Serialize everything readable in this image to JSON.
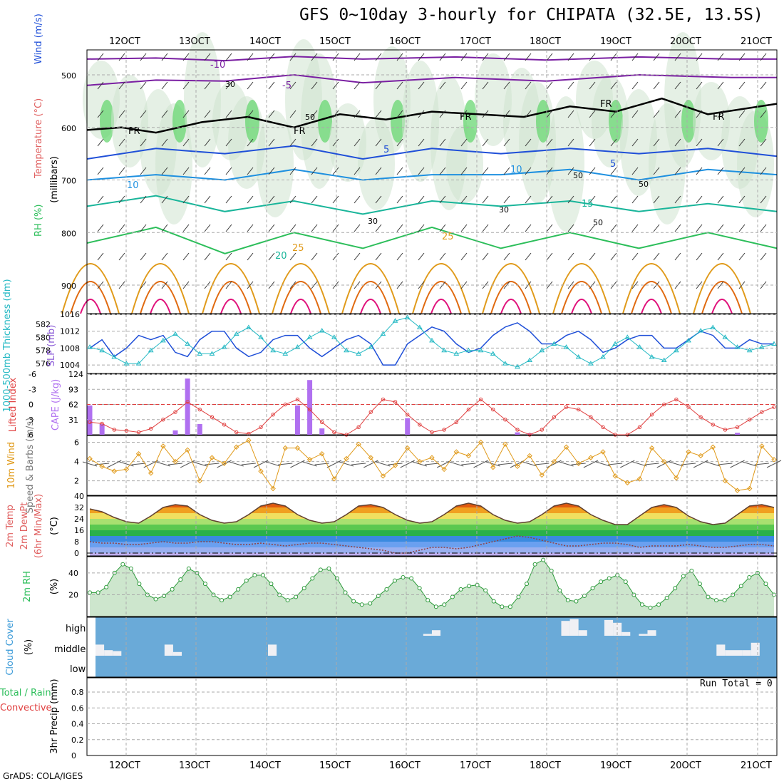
{
  "title": "GFS 0~10day 3-hourly for CHIPATA (32.5E, 13.5S)",
  "footer": "GrADS: COLA/IGES",
  "colors": {
    "purple": "#7a1fa2",
    "black": "#000000",
    "blue": "#1f4fd8",
    "lblue": "#1e90e0",
    "teal": "#19b59a",
    "green20": "#2cbe5a",
    "orange": "#e09a1a",
    "dorange": "#e06a10",
    "magenta": "#e0107a"
  },
  "chart_data": [
    {
      "panel": "upper-air",
      "type": "contour",
      "labels": {
        "wind": "Wind (m/s)",
        "temperature": "Temperature (°C)",
        "rh": "RH (%)",
        "axis": "(millibars)"
      },
      "y_ticks": [
        "500",
        "600",
        "700",
        "800",
        "900"
      ],
      "temperature_labels": [
        "-10",
        "-5",
        "FR",
        "FR",
        "FR",
        "FR",
        "FR",
        "5",
        "5",
        "10",
        "10",
        "15",
        "20",
        "25",
        "25"
      ],
      "rh_labels": [
        "30",
        "50",
        "50",
        "30",
        "30",
        "50",
        "50"
      ],
      "temp_isotherms": [
        {
          "label": "-10",
          "color": "purple",
          "x": [
            0,
            30,
            60,
            90,
            120,
            160,
            200,
            240,
            280,
            300
          ],
          "y": [
            470,
            468,
            473,
            465,
            470,
            466,
            472,
            466,
            470,
            470
          ]
        },
        {
          "label": "-5",
          "color": "purple",
          "x": [
            0,
            30,
            60,
            90,
            120,
            160,
            200,
            240,
            280,
            300
          ],
          "y": [
            520,
            510,
            512,
            500,
            515,
            505,
            512,
            500,
            505,
            505
          ]
        },
        {
          "label": "FR",
          "color": "black",
          "x": [
            0,
            15,
            30,
            50,
            70,
            90,
            110,
            130,
            150,
            170,
            190,
            210,
            230,
            250,
            270,
            300
          ],
          "y": [
            605,
            600,
            610,
            590,
            580,
            600,
            575,
            585,
            570,
            575,
            580,
            560,
            570,
            545,
            575,
            555
          ]
        },
        {
          "label": "5",
          "color": "blue",
          "x": [
            0,
            30,
            60,
            90,
            120,
            150,
            180,
            210,
            240,
            270,
            300
          ],
          "y": [
            660,
            640,
            650,
            635,
            660,
            640,
            650,
            640,
            650,
            640,
            655
          ]
        },
        {
          "label": "10",
          "color": "lblue",
          "x": [
            0,
            30,
            60,
            90,
            120,
            150,
            180,
            210,
            240,
            270,
            300
          ],
          "y": [
            700,
            690,
            700,
            680,
            700,
            690,
            690,
            680,
            700,
            680,
            690
          ]
        },
        {
          "label": "15",
          "color": "teal",
          "x": [
            0,
            30,
            60,
            90,
            120,
            150,
            180,
            210,
            240,
            270,
            300
          ],
          "y": [
            750,
            730,
            760,
            740,
            765,
            740,
            750,
            740,
            760,
            745,
            760
          ]
        },
        {
          "label": "20",
          "color": "green20",
          "x": [
            0,
            30,
            60,
            90,
            120,
            150,
            180,
            210,
            240,
            270,
            300
          ],
          "y": [
            820,
            790,
            840,
            800,
            830,
            790,
            830,
            800,
            830,
            800,
            830
          ]
        }
      ],
      "x_ticks": [
        "12OCT",
        "13OCT",
        "14OCT",
        "15OCT",
        "16OCT",
        "17OCT",
        "18OCT",
        "19OCT",
        "20OCT",
        "21OCT"
      ]
    },
    {
      "panel": "slp-thickness",
      "type": "line",
      "labels": {
        "thickness": "1000-500mb Thickness (dm)",
        "slp": "SLP (mb)"
      },
      "y_left_ticks": [
        "582",
        "580",
        "578",
        "576"
      ],
      "y_right_ticks": [
        "1016",
        "1012",
        "1008",
        "1004"
      ],
      "series": [
        {
          "name": "SLP",
          "color": "blue",
          "values": [
            1008,
            1010,
            1006,
            1008,
            1011,
            1010,
            1011,
            1007,
            1006,
            1010,
            1012,
            1012,
            1008,
            1006,
            1007,
            1010,
            1011,
            1011,
            1008,
            1006,
            1008,
            1010,
            1011,
            1009,
            1004,
            1004,
            1009,
            1011,
            1013,
            1012,
            1009,
            1007,
            1008,
            1011,
            1013,
            1014,
            1012,
            1009,
            1009,
            1011,
            1012,
            1010,
            1007,
            1008,
            1010,
            1011,
            1011,
            1008,
            1008,
            1010,
            1012,
            1011,
            1008,
            1008,
            1010,
            1009,
            1009
          ]
        },
        {
          "name": "Thickness",
          "color": "teal",
          "values": [
            578.5,
            578.0,
            577.0,
            576.0,
            576.0,
            578.0,
            579.5,
            580.5,
            579.0,
            577.5,
            577.5,
            578.5,
            580.5,
            581.5,
            580.0,
            578.0,
            577.5,
            578.5,
            580.0,
            581.0,
            580.0,
            578.0,
            577.5,
            578.5,
            580.5,
            582.5,
            583.0,
            581.5,
            579.5,
            578.0,
            577.5,
            578.0,
            578.0,
            577.5,
            576.0,
            575.5,
            576.5,
            578.0,
            579.0,
            578.5,
            577.0,
            576.0,
            577.0,
            579.0,
            580.0,
            578.5,
            577.0,
            576.5,
            578.0,
            579.5,
            581.0,
            581.5,
            580.0,
            578.5,
            578.0,
            578.5,
            579.0
          ]
        }
      ]
    },
    {
      "panel": "cape-li",
      "type": "bar+line",
      "labels": {
        "li": "Lifted Index",
        "cape": "CAPE (J/kg)"
      },
      "y_left_ticks": [
        "-6",
        "-3",
        "0",
        "3",
        "6"
      ],
      "y_right_ticks": [
        "124",
        "93",
        "62",
        "31"
      ],
      "cape_values": [
        60,
        22,
        0,
        0,
        0,
        0,
        0,
        9,
        115,
        22,
        0,
        0,
        0,
        0,
        0,
        0,
        0,
        60,
        112,
        13,
        0,
        0,
        0,
        0,
        0,
        0,
        34,
        0,
        0,
        0,
        0,
        0,
        0,
        0,
        0,
        5,
        3,
        0,
        0,
        0,
        0,
        0,
        0,
        0,
        0,
        0,
        0,
        0,
        0,
        0,
        0,
        0,
        0,
        4,
        0,
        0,
        0
      ],
      "li_values": [
        3.5,
        3.8,
        5.0,
        5.2,
        5.5,
        4.8,
        3.0,
        1.5,
        -0.5,
        1.0,
        2.5,
        4.0,
        5.5,
        5.8,
        4.5,
        2.0,
        0.0,
        -1.0,
        1.0,
        3.5,
        5.5,
        6.0,
        4.5,
        1.5,
        -1.0,
        -0.5,
        2.0,
        4.0,
        5.5,
        5.0,
        3.5,
        1.0,
        -1.0,
        1.0,
        3.0,
        5.0,
        6.0,
        5.0,
        2.5,
        0.5,
        1.0,
        2.5,
        4.5,
        6.0,
        6.0,
        4.5,
        2.0,
        0.0,
        -1.0,
        0.5,
        2.5,
        4.0,
        5.0,
        4.5,
        3.0,
        1.5,
        0.5
      ]
    },
    {
      "panel": "wind10m",
      "type": "line",
      "labels": {
        "main": "10m Wind",
        "sub": "Speed & Barbs (m/s)"
      },
      "y_ticks": [
        "6",
        "4",
        "2"
      ],
      "values": [
        4.3,
        3.5,
        3.0,
        3.2,
        4.8,
        2.8,
        5.6,
        4.0,
        5.2,
        2.0,
        4.4,
        3.8,
        5.5,
        6.2,
        3.0,
        1.2,
        5.4,
        5.4,
        4.2,
        4.8,
        2.2,
        4.3,
        5.8,
        4.4,
        2.5,
        3.6,
        5.4,
        4.0,
        4.4,
        3.2,
        5.0,
        4.6,
        6.0,
        3.4,
        5.8,
        3.5,
        4.6,
        2.6,
        4.0,
        5.5,
        3.8,
        4.4,
        5.0,
        2.5,
        1.8,
        2.2,
        5.4,
        4.0,
        2.3,
        5.0,
        4.6,
        5.5,
        2.0,
        1.0,
        1.2,
        5.6,
        4.2
      ]
    },
    {
      "panel": "temp2m",
      "type": "area+line",
      "labels": {
        "a": "2m Temp",
        "b": "2m DewPt",
        "c": "(6hr Min/Max)",
        "unit": "(°C)"
      },
      "y_ticks": [
        "40",
        "32",
        "24",
        "16",
        "8",
        "0"
      ],
      "temp_values": [
        31,
        29,
        25,
        22,
        21,
        26,
        32,
        34,
        33,
        27,
        23,
        21,
        22,
        27,
        33,
        35,
        33,
        27,
        23,
        21,
        22,
        27,
        33,
        34,
        32,
        27,
        23,
        21,
        22,
        27,
        33,
        35,
        33,
        27,
        23,
        21,
        22,
        27,
        33,
        35,
        33,
        27,
        23,
        20,
        20,
        26,
        32,
        34,
        32,
        26,
        22,
        20,
        21,
        27,
        33,
        34,
        32
      ],
      "dewpt_values": [
        8,
        7,
        7,
        6,
        6,
        7,
        8,
        7,
        7,
        8,
        8,
        7,
        6,
        6,
        7,
        6,
        5,
        6,
        7,
        7,
        6,
        5,
        4,
        3,
        2,
        0,
        0,
        2,
        4,
        4,
        3,
        4,
        6,
        8,
        10,
        12,
        11,
        9,
        7,
        5,
        5,
        6,
        7,
        7,
        6,
        4,
        5,
        5,
        5,
        6,
        5,
        4,
        4,
        5,
        6,
        6,
        5
      ]
    },
    {
      "panel": "rh2m",
      "type": "area",
      "labels": {
        "main": "2m RH",
        "unit": "(%)"
      },
      "y_ticks": [
        "40",
        "20"
      ],
      "values": [
        22,
        22,
        27,
        40,
        48,
        44,
        30,
        20,
        16,
        19,
        25,
        34,
        44,
        40,
        30,
        20,
        15,
        18,
        25,
        33,
        38,
        38,
        30,
        20,
        15,
        18,
        26,
        35,
        43,
        44,
        35,
        22,
        14,
        11,
        12,
        19,
        25,
        33,
        36,
        35,
        26,
        15,
        9,
        11,
        18,
        25,
        28,
        29,
        24,
        14,
        9,
        9,
        18,
        30,
        48,
        52,
        42,
        24,
        15,
        14,
        19,
        26,
        32,
        35,
        38,
        32,
        20,
        11,
        8,
        11,
        17,
        26,
        37,
        42,
        30,
        18,
        15,
        15,
        20,
        28,
        36,
        40,
        30,
        20
      ],
      "y_range": [
        0,
        55
      ]
    },
    {
      "panel": "cloud",
      "type": "heatmap",
      "labels": {
        "main": "Cloud Cover",
        "unit": "(%)",
        "levels": [
          "high",
          "middle",
          "low"
        ]
      },
      "high_cover": [
        0,
        0,
        0,
        0,
        0,
        0,
        0,
        0,
        0,
        0,
        0,
        0,
        0,
        0,
        0,
        0,
        0,
        0,
        0,
        0,
        0,
        0,
        0,
        0,
        0,
        0,
        0,
        0,
        0,
        0,
        0,
        0,
        0,
        0,
        0,
        0,
        0,
        0,
        10,
        30,
        0,
        0,
        0,
        0,
        0,
        0,
        0,
        0,
        0,
        0,
        0,
        0,
        0,
        0,
        80,
        90,
        30,
        0,
        0,
        85,
        70,
        20,
        0,
        10,
        30,
        0,
        0,
        0,
        0,
        0,
        0,
        0,
        0,
        0,
        0,
        0,
        0,
        0,
        0
      ],
      "mid_cover": [
        60,
        30,
        25,
        0,
        0,
        0,
        0,
        0,
        60,
        20,
        0,
        0,
        0,
        0,
        0,
        0,
        0,
        0,
        0,
        0,
        60,
        0,
        0,
        0,
        0,
        0,
        0,
        0,
        0,
        0,
        0,
        0,
        0,
        0,
        0,
        0,
        0,
        0,
        0,
        0,
        0,
        0,
        0,
        0,
        0,
        0,
        0,
        0,
        0,
        0,
        0,
        0,
        0,
        0,
        0,
        0,
        0,
        0,
        0,
        0,
        0,
        0,
        0,
        0,
        0,
        0,
        0,
        0,
        0,
        0,
        0,
        0,
        60,
        30,
        30,
        30,
        70,
        0,
        0
      ]
    },
    {
      "panel": "precip",
      "type": "bar",
      "labels": {
        "a": "Total / Rain",
        "b": "Convective",
        "c": "3hr Precip (mm)"
      },
      "y_ticks": [
        "0.8",
        "0.6",
        "0.4",
        "0.2",
        "0"
      ],
      "run_total": "Run Total = 0",
      "values": []
    }
  ]
}
